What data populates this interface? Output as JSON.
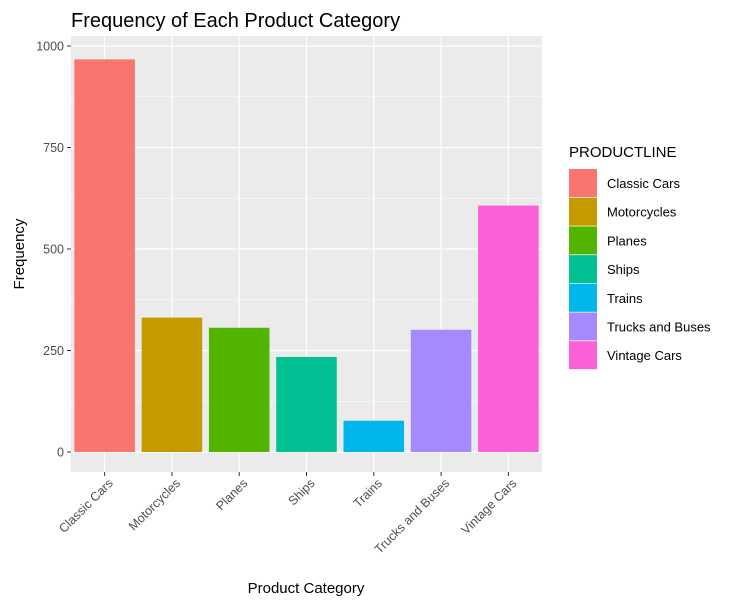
{
  "chart_data": {
    "type": "bar",
    "title": "Frequency of Each Product Category",
    "xlabel": "Product Category",
    "ylabel": "Frequency",
    "categories": [
      "Classic Cars",
      "Motorcycles",
      "Planes",
      "Ships",
      "Trains",
      "Trucks and Buses",
      "Vintage Cars"
    ],
    "values": [
      967,
      331,
      306,
      234,
      77,
      301,
      607
    ],
    "colors": [
      "#F8766D",
      "#C49A00",
      "#53B400",
      "#00C094",
      "#00B6EB",
      "#A58AFF",
      "#FB61D7"
    ],
    "ylim": [
      0,
      1000
    ],
    "yticks": [
      0,
      250,
      500,
      750,
      1000
    ],
    "ytick_labels": [
      "0",
      "250",
      "500",
      "750",
      "1000"
    ],
    "grid": true,
    "legend": {
      "title": "PRODUCTLINE",
      "placement": "right",
      "entries": [
        "Classic Cars",
        "Motorcycles",
        "Planes",
        "Ships",
        "Trains",
        "Trucks and Buses",
        "Vintage Cars"
      ]
    }
  }
}
